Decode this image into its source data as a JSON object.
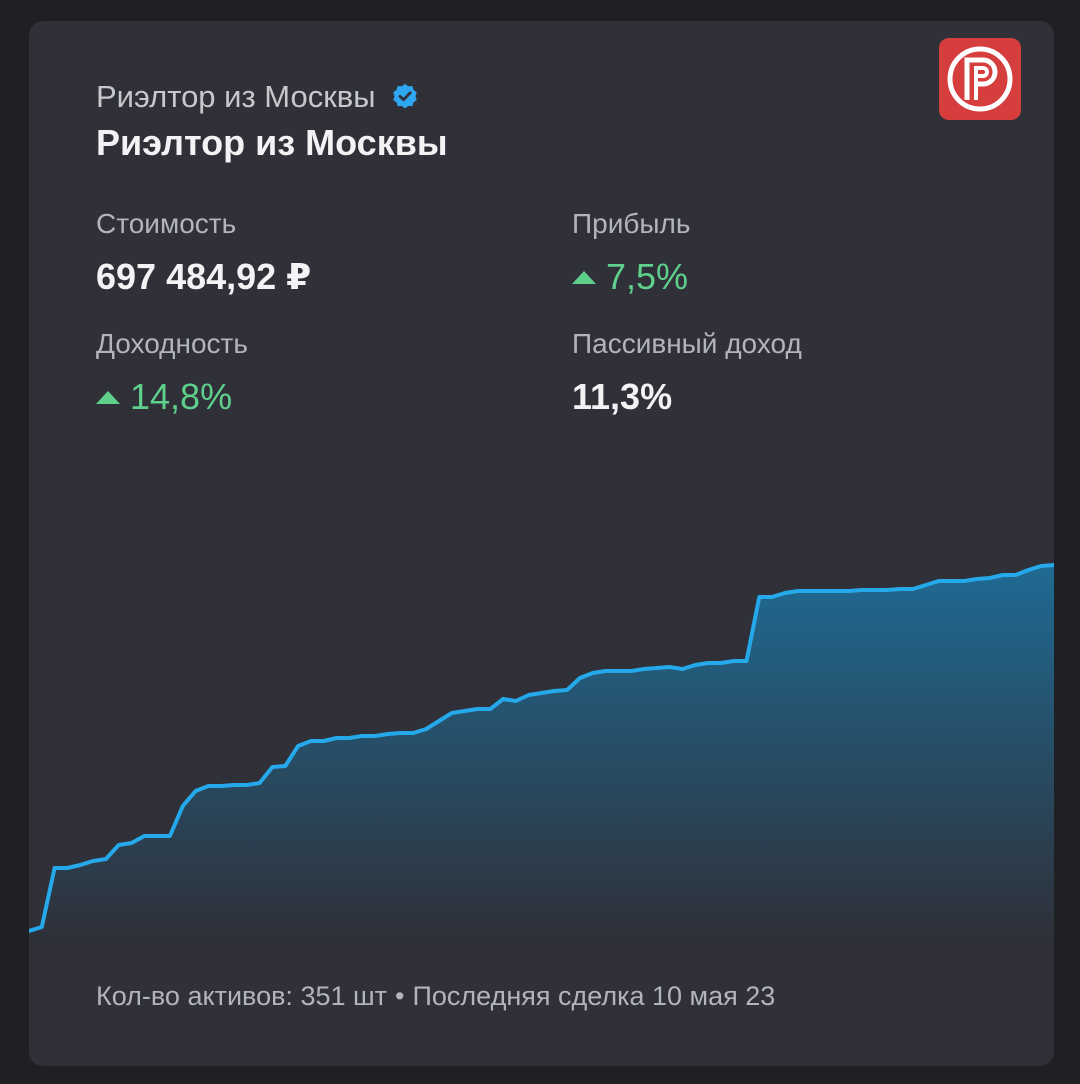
{
  "header": {
    "author_name": "Риэлтор из Москвы",
    "portfolio_title": "Риэлтор из Москвы",
    "verified_icon": "verified-badge-icon",
    "logo_icon": "p-logo-icon",
    "verified_color": "#2ea6f2",
    "logo_color": "#d63d3d"
  },
  "metrics": {
    "cost_label": "Стоимость",
    "cost_value": "697 484,92 ₽",
    "profit_label": "Прибыль",
    "profit_value": "7,5%",
    "yield_label": "Доходность",
    "yield_value": "14,8%",
    "passive_label": "Пассивный доход",
    "passive_value": "11,3%",
    "positive_color": "#5ed08c"
  },
  "chart_data": {
    "type": "area",
    "title": "",
    "xlabel": "",
    "ylabel": "",
    "ylim": [
      0,
      420
    ],
    "line_color": "#25a9ea",
    "series": [
      {
        "values": [
          10,
          14,
          73,
          73,
          76,
          80,
          82,
          96,
          98,
          105,
          105,
          105,
          135,
          150,
          155,
          155,
          156,
          156,
          158,
          174,
          175,
          195,
          200,
          200,
          203,
          203,
          205,
          205,
          207,
          208,
          208,
          212,
          220,
          228,
          230,
          232,
          232,
          242,
          240,
          246,
          248,
          250,
          251,
          263,
          268,
          270,
          270,
          270,
          272,
          273,
          274,
          272,
          276,
          278,
          278,
          280,
          280,
          344,
          344,
          348,
          350,
          350,
          350,
          350,
          350,
          351,
          351,
          351,
          352,
          352,
          356,
          360,
          360,
          360,
          362,
          363,
          366,
          366,
          371,
          375,
          376
        ]
      }
    ]
  },
  "footer": {
    "assets_text": "Кол-во активов: 351 шт",
    "separator": "•",
    "last_deal_text": "Последняя сделка 10 мая 23"
  }
}
